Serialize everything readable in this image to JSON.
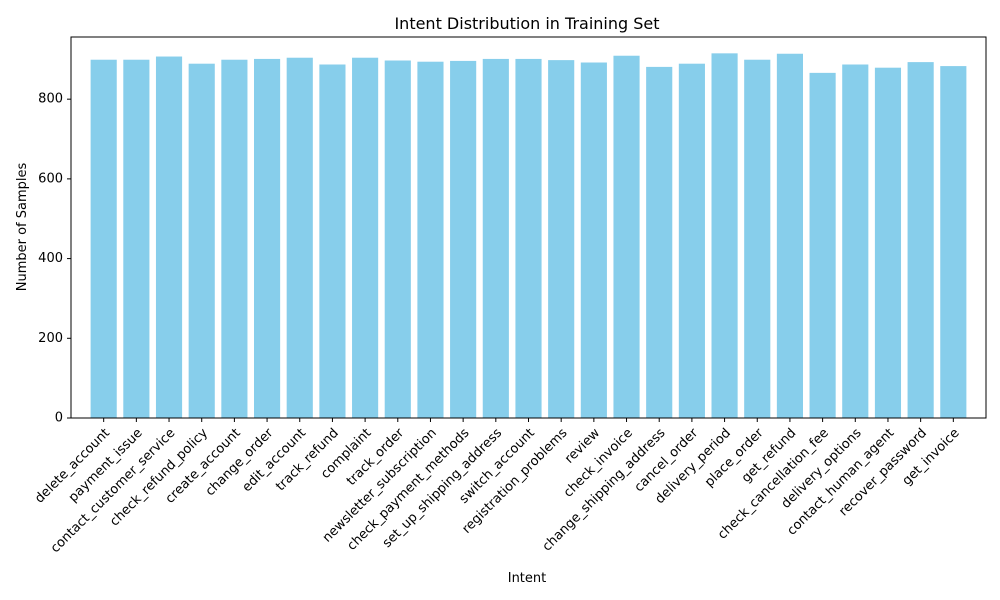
{
  "chart_data": {
    "type": "bar",
    "title": "Intent Distribution in Training Set",
    "xlabel": "Intent",
    "ylabel": "Number of Samples",
    "ylim": [
      0,
      956
    ],
    "yticks": [
      0,
      200,
      400,
      600,
      800
    ],
    "bar_color": "#87ceeb",
    "grid": false,
    "categories": [
      "delete_account",
      "payment_issue",
      "contact_customer_service",
      "check_refund_policy",
      "create_account",
      "change_order",
      "edit_account",
      "track_refund",
      "complaint",
      "track_order",
      "newsletter_subscription",
      "check_payment_methods",
      "set_up_shipping_address",
      "switch_account",
      "registration_problems",
      "review",
      "check_invoice",
      "change_shipping_address",
      "cancel_order",
      "delivery_period",
      "place_order",
      "get_refund",
      "check_cancellation_fee",
      "delivery_options",
      "contact_human_agent",
      "recover_password",
      "get_invoice"
    ],
    "values": [
      899,
      899,
      907,
      889,
      899,
      901,
      904,
      887,
      904,
      897,
      894,
      896,
      901,
      901,
      898,
      892,
      909,
      881,
      889,
      915,
      899,
      914,
      866,
      887,
      879,
      893,
      883
    ]
  }
}
